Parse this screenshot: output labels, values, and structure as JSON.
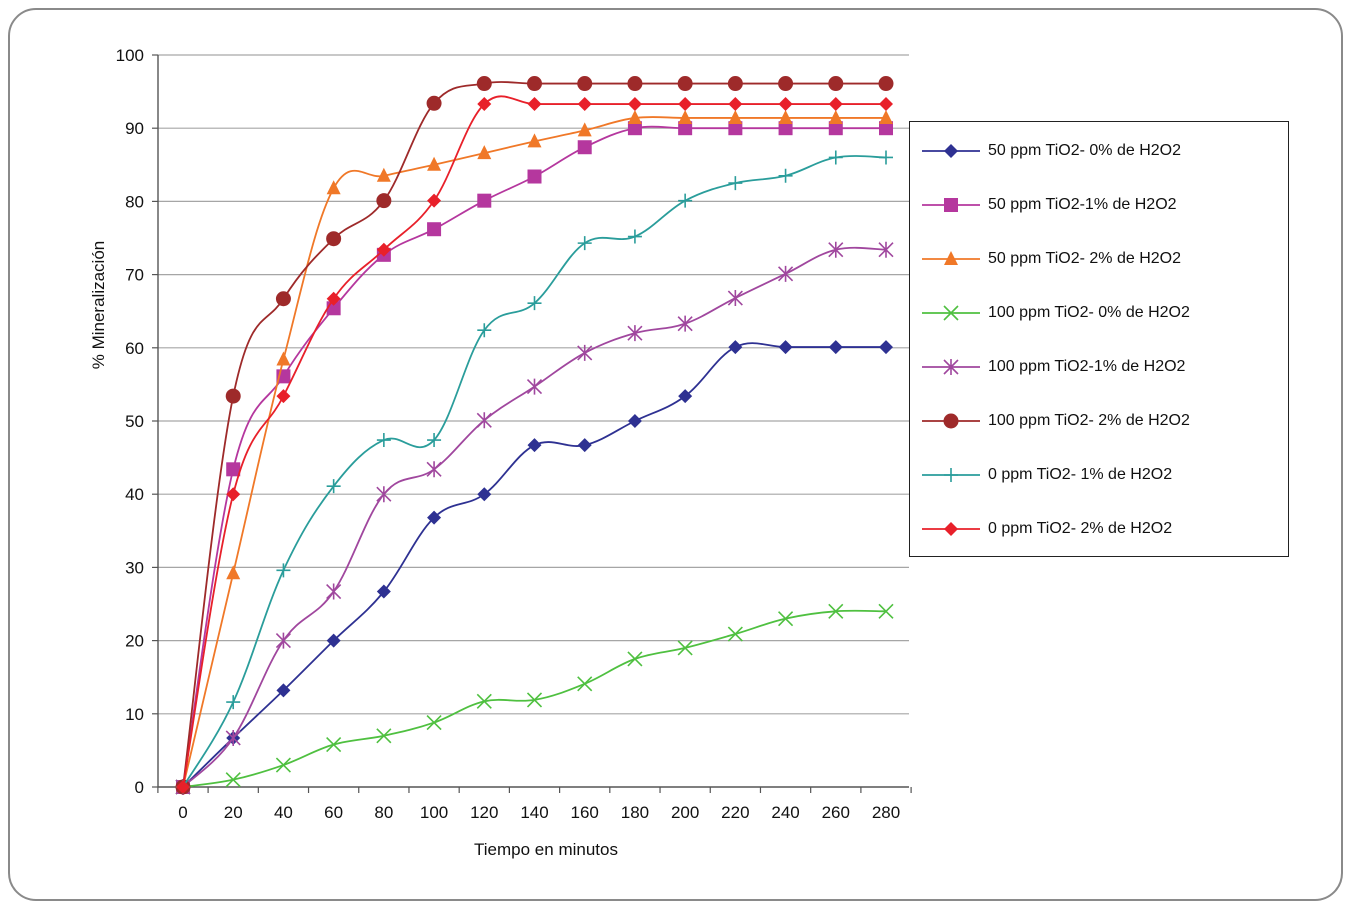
{
  "chart_data": {
    "type": "line",
    "title": "",
    "xlabel": "Tiempo en minutos",
    "ylabel": "% Mineralización",
    "xlim": [
      0,
      280
    ],
    "ylim": [
      0,
      100
    ],
    "x_ticks": [
      0,
      20,
      40,
      60,
      80,
      100,
      120,
      140,
      160,
      180,
      200,
      220,
      240,
      260,
      280
    ],
    "y_ticks": [
      0,
      10,
      20,
      30,
      40,
      50,
      60,
      70,
      80,
      90,
      100
    ],
    "grid": "horizontal",
    "legend_position": "right",
    "series": [
      {
        "name": "50 ppm TiO2- 0% de H2O2",
        "color": "#2e3192",
        "marker": "diamond",
        "x": [
          0,
          20,
          40,
          60,
          80,
          100,
          120,
          140,
          160,
          180,
          200,
          220,
          240,
          260,
          280
        ],
        "y": [
          0,
          6.7,
          13.2,
          20,
          26.7,
          36.8,
          40,
          46.7,
          46.7,
          50,
          53.4,
          60.1,
          60.1,
          60.1,
          60.1
        ]
      },
      {
        "name": "50 ppm TiO2-1% de H2O2",
        "color": "#b5379e",
        "marker": "square",
        "x": [
          0,
          20,
          40,
          60,
          80,
          100,
          120,
          140,
          160,
          180,
          200,
          220,
          240,
          260,
          280
        ],
        "y": [
          0,
          43.4,
          56.1,
          65.4,
          72.7,
          76.2,
          80.1,
          83.4,
          87.4,
          90,
          90,
          90,
          90,
          90,
          90
        ]
      },
      {
        "name": "50 ppm TiO2- 2% de H2O2",
        "color": "#f07828",
        "marker": "triangle",
        "x": [
          0,
          20,
          40,
          60,
          80,
          100,
          120,
          140,
          160,
          180,
          200,
          220,
          240,
          260,
          280
        ],
        "y": [
          0,
          29.2,
          58.4,
          81.8,
          83.5,
          85,
          86.6,
          88.2,
          89.7,
          91.4,
          91.4,
          91.4,
          91.4,
          91.4,
          91.4
        ]
      },
      {
        "name": "100 ppm TiO2- 0% de H2O2",
        "color": "#4fc040",
        "marker": "x",
        "x": [
          0,
          20,
          40,
          60,
          80,
          100,
          120,
          140,
          160,
          180,
          200,
          220,
          240,
          260,
          280
        ],
        "y": [
          0,
          1,
          3,
          5.8,
          7,
          8.8,
          11.7,
          11.9,
          14.1,
          17.5,
          19,
          20.9,
          23,
          24,
          24
        ]
      },
      {
        "name": "100 ppm TiO2-1% de H2O2",
        "color": "#a0479e",
        "marker": "star",
        "x": [
          0,
          20,
          40,
          60,
          80,
          100,
          120,
          140,
          160,
          180,
          200,
          220,
          240,
          260,
          280
        ],
        "y": [
          0,
          6.7,
          20,
          26.7,
          40,
          43.4,
          50.1,
          54.7,
          59.3,
          62,
          63.3,
          66.8,
          70.1,
          73.4,
          73.4
        ]
      },
      {
        "name": "100 ppm TiO2- 2% de H2O2",
        "color": "#9e2a2a",
        "marker": "circle",
        "x": [
          0,
          20,
          40,
          60,
          80,
          100,
          120,
          140,
          160,
          180,
          200,
          220,
          240,
          260,
          280
        ],
        "y": [
          0,
          53.4,
          66.7,
          74.9,
          80.1,
          93.4,
          96.1,
          96.1,
          96.1,
          96.1,
          96.1,
          96.1,
          96.1,
          96.1,
          96.1
        ]
      },
      {
        "name": "0 ppm TiO2- 1% de H2O2",
        "color": "#2a9d9b",
        "marker": "plus",
        "x": [
          0,
          20,
          40,
          60,
          80,
          100,
          120,
          140,
          160,
          180,
          200,
          220,
          240,
          260,
          280
        ],
        "y": [
          0,
          11.6,
          29.6,
          41.1,
          47.4,
          47.4,
          62.4,
          66.1,
          74.3,
          75.2,
          80.1,
          82.5,
          83.5,
          86,
          86
        ]
      },
      {
        "name": "0 ppm TiO2- 2% de H2O2",
        "color": "#e8202a",
        "marker": "diamond",
        "x": [
          0,
          20,
          40,
          60,
          80,
          100,
          120,
          140,
          160,
          180,
          200,
          220,
          240,
          260,
          280
        ],
        "y": [
          0,
          40,
          53.4,
          66.7,
          73.4,
          80.1,
          93.3,
          93.3,
          93.3,
          93.3,
          93.3,
          93.3,
          93.3,
          93.3,
          93.3
        ]
      }
    ]
  }
}
